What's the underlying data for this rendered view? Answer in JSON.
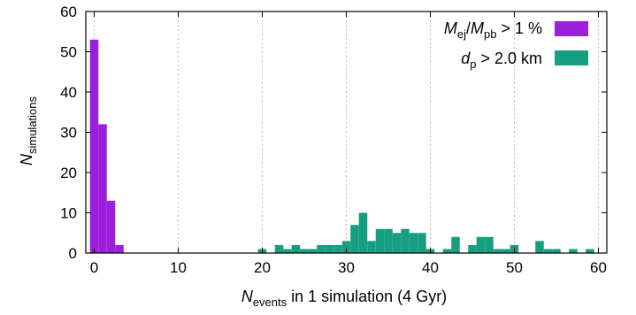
{
  "chart_data": {
    "type": "bar",
    "title": "",
    "xlabel": {
      "main": "N",
      "sub": "events",
      "rest": " in 1 simulation (4 Gyr)"
    },
    "ylabel": {
      "main": "N",
      "sub": "simulations"
    },
    "xlim": [
      -1,
      61
    ],
    "ylim": [
      0,
      60
    ],
    "xticks": [
      0,
      10,
      20,
      30,
      40,
      50,
      60
    ],
    "yticks": [
      0,
      10,
      20,
      30,
      40,
      50,
      60
    ],
    "grid": "vertical dotted at x ticks",
    "legend_position": "top-right",
    "series": [
      {
        "name": {
          "a": "M",
          "a_sub": "ej",
          "slash": "/",
          "b": "M",
          "b_sub": "pb",
          "rest": " > 1 %"
        },
        "color": "#9b1fdc",
        "x": [
          0,
          1,
          2,
          3
        ],
        "values": [
          53,
          32,
          13,
          2
        ]
      },
      {
        "name": {
          "a": "d",
          "a_sub": "p",
          "rest": " > 2.0 km"
        },
        "color": "#169e80",
        "x": [
          20,
          22,
          23,
          24,
          25,
          26,
          27,
          28,
          29,
          30,
          31,
          32,
          33,
          34,
          35,
          36,
          37,
          38,
          39,
          40,
          42,
          43,
          45,
          46,
          47,
          48,
          49,
          50,
          53,
          54,
          55,
          57,
          59
        ],
        "values": [
          1,
          2,
          1,
          2,
          1,
          1,
          2,
          2,
          2,
          3,
          7,
          10,
          3,
          6,
          6,
          5,
          6,
          5,
          5,
          1,
          1,
          4,
          2,
          4,
          4,
          1,
          1,
          2,
          3,
          1,
          1,
          1,
          1
        ]
      }
    ]
  }
}
